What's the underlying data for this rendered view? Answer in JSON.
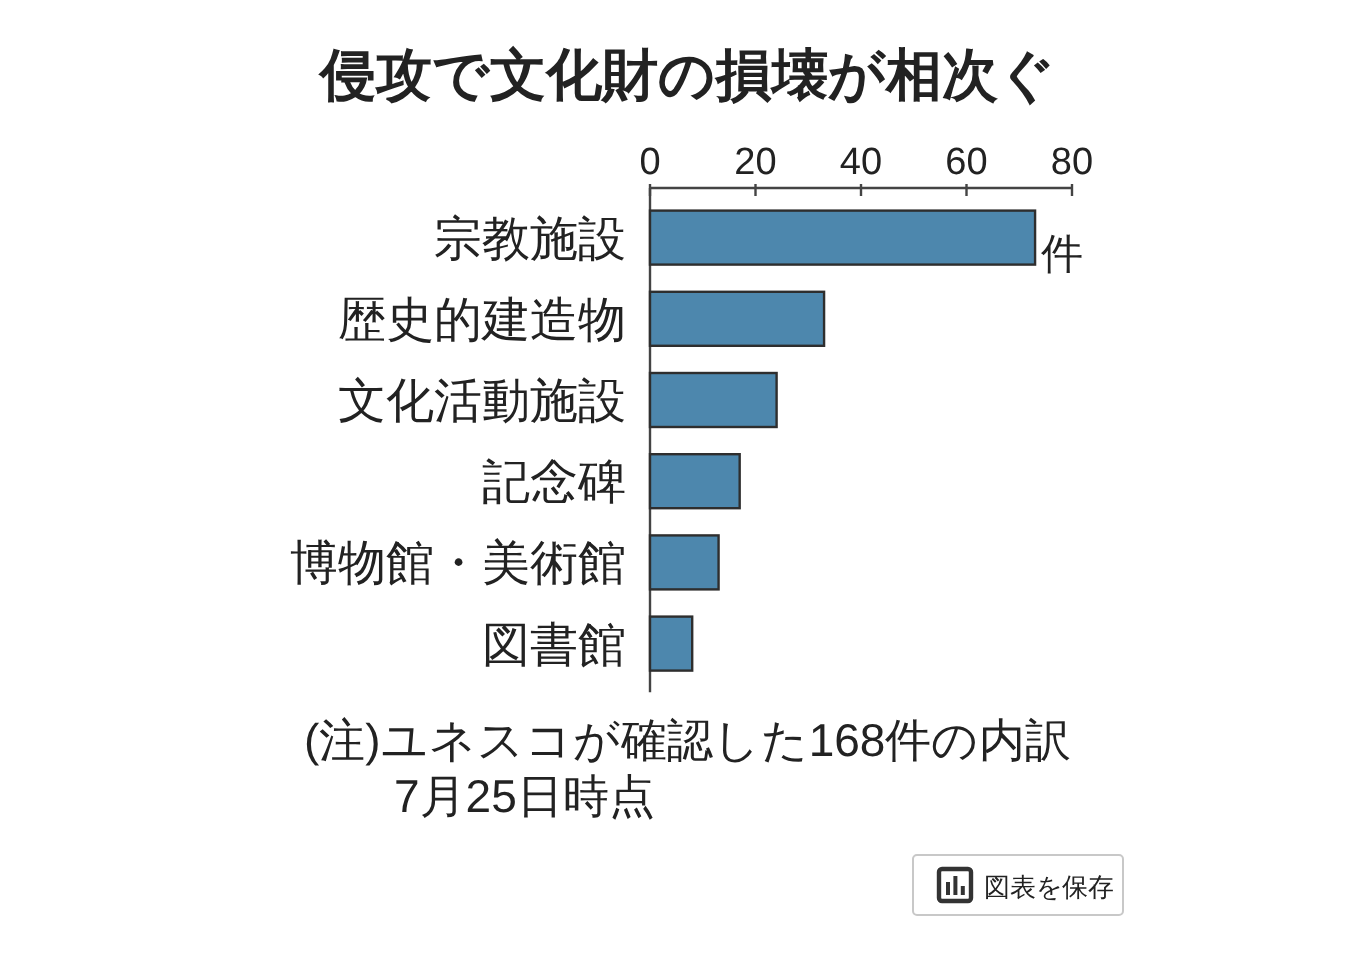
{
  "chart_data": {
    "type": "bar",
    "orientation": "horizontal",
    "title": "侵攻で文化財の損壊が相次ぐ",
    "xlabel": "件",
    "categories": [
      "宗教施設",
      "歴史的建造物",
      "文化活動施設",
      "記念碑",
      "博物館・美術館",
      "図書館"
    ],
    "values": [
      73,
      33,
      24,
      17,
      13,
      8
    ],
    "color": "#4d87ad",
    "xlim": [
      0,
      80
    ],
    "xticks": [
      0,
      20,
      40,
      60,
      80
    ],
    "annotations": [
      "(注)ユネスコが確認した168件の内訳",
      "7月25日時点",
      "図表を保存"
    ]
  }
}
